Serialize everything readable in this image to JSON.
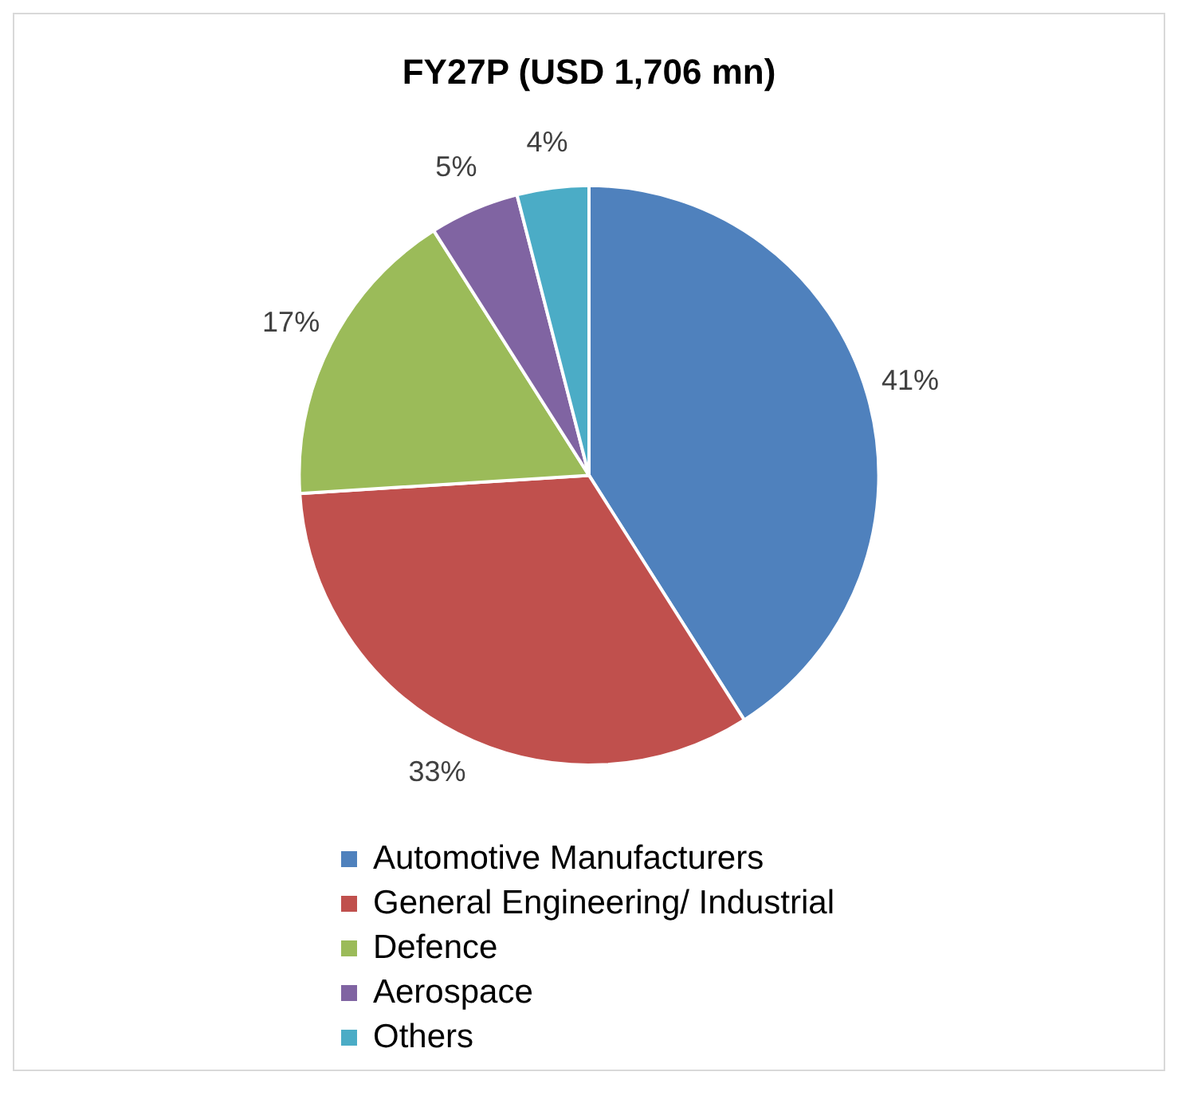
{
  "chart_data": {
    "type": "pie",
    "title": "FY27P (USD 1,706 mn)",
    "categories": [
      "Automotive Manufacturers",
      "General Engineering/ Industrial",
      "Defence",
      "Aerospace",
      "Others"
    ],
    "values": [
      41,
      33,
      17,
      5,
      4
    ],
    "value_labels": [
      "41%",
      "33%",
      "17%",
      "5%",
      "4%"
    ],
    "colors": [
      "#4f81bd",
      "#c0504d",
      "#9bbb59",
      "#8064a2",
      "#4bacc6"
    ],
    "legend": "bottom"
  }
}
